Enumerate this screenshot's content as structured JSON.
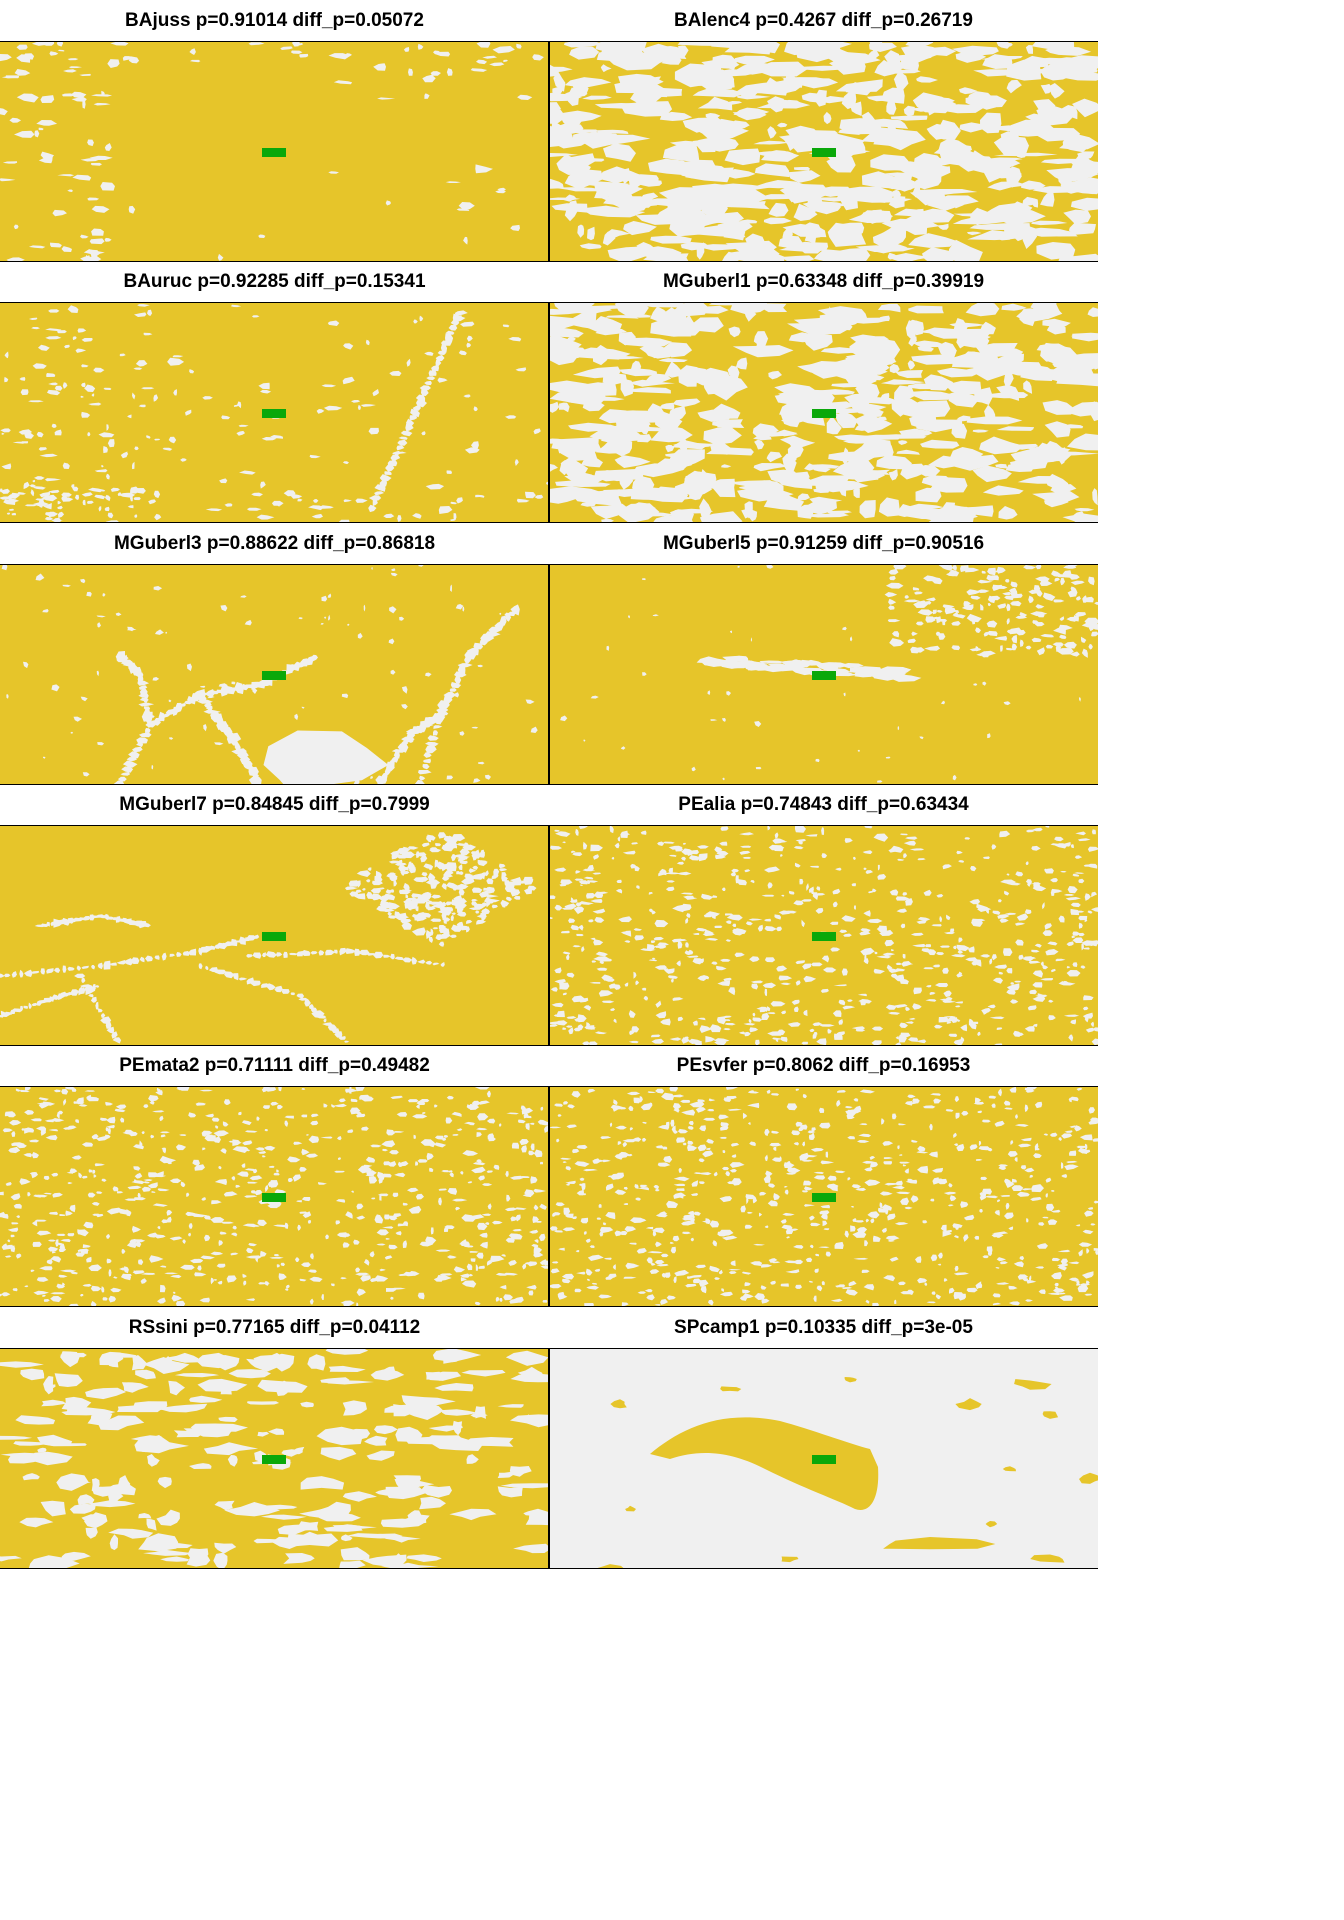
{
  "colors": {
    "suitable": "#e6c52a",
    "unsuitable": "#f0f0f0",
    "site": "#0aa80a",
    "border": "#000000"
  },
  "panels": [
    {
      "id": "BAjuss",
      "title": "BAjuss p=0.91014 diff_p=0.05072",
      "pattern": "sparse-edges",
      "base": "suitable"
    },
    {
      "id": "BAlenc4",
      "title": "BAlenc4 p=0.4267 diff_p=0.26719",
      "pattern": "dense-mosaic",
      "base": "suitable"
    },
    {
      "id": "BAuruc",
      "title": "BAuruc p=0.92285 diff_p=0.15341",
      "pattern": "sparse-scattered",
      "base": "suitable"
    },
    {
      "id": "MGuberl1",
      "title": "MGuberl1 p=0.63348 diff_p=0.39919",
      "pattern": "dense-mosaic",
      "base": "suitable"
    },
    {
      "id": "MGuberl3",
      "title": "MGuberl3 p=0.88622 diff_p=0.86818",
      "pattern": "branching",
      "base": "suitable"
    },
    {
      "id": "MGuberl5",
      "title": "MGuberl5 p=0.91259 diff_p=0.90516",
      "pattern": "streak",
      "base": "suitable"
    },
    {
      "id": "MGuberl7",
      "title": "MGuberl7 p=0.84845 diff_p=0.7999",
      "pattern": "network",
      "base": "suitable"
    },
    {
      "id": "PEalia",
      "title": "PEalia p=0.74843 diff_p=0.63434",
      "pattern": "speckled",
      "base": "suitable"
    },
    {
      "id": "PEmata2",
      "title": "PEmata2 p=0.71111 diff_p=0.49482",
      "pattern": "speckled",
      "base": "suitable"
    },
    {
      "id": "PEsvfer",
      "title": "PEsvfer p=0.8062 diff_p=0.16953",
      "pattern": "speckled",
      "base": "suitable"
    },
    {
      "id": "RSsini",
      "title": "RSsini p=0.77165 diff_p=0.04112",
      "pattern": "blobs",
      "base": "suitable"
    },
    {
      "id": "SPcamp1",
      "title": "SPcamp1 p=0.10335 diff_p=3e-05",
      "pattern": "island",
      "base": "unsuitable"
    }
  ]
}
